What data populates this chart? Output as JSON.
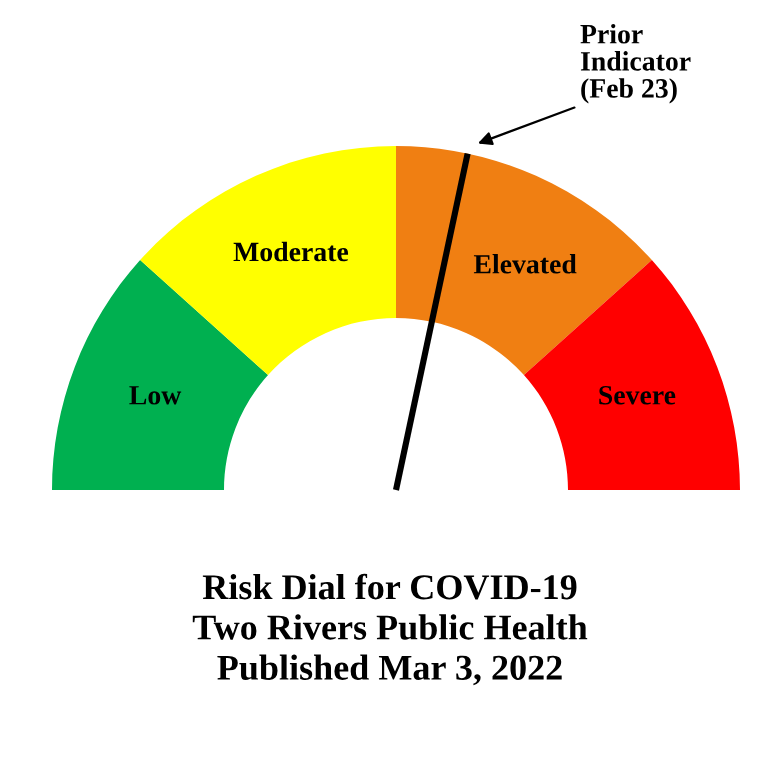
{
  "chart_data": {
    "type": "donut",
    "title": "Risk Dial for COVID-19\nTwo Rivers Public Health\nPublished Mar 3, 2022",
    "categories": [
      "Low",
      "Moderate",
      "Elevated",
      "Severe"
    ],
    "values": [
      23.3,
      26.7,
      26.7,
      23.3
    ],
    "colors": [
      "#00b050",
      "#ffff00",
      "#f07f12",
      "#ff0000"
    ],
    "needle": "Elevated",
    "annotations": [
      "Prior\nIndicator\n(Feb 23)"
    ]
  }
}
